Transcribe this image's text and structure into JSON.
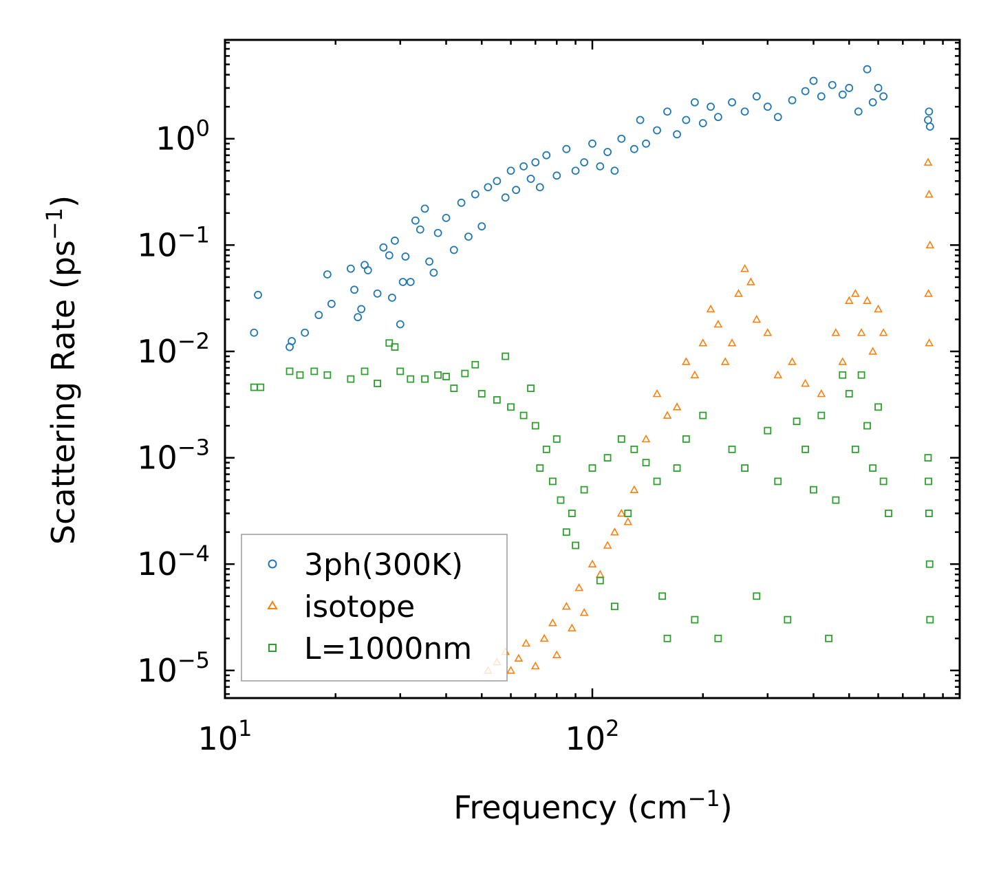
{
  "chart_data": {
    "type": "scatter",
    "xlabel": "Frequency (cm",
    "xlabel_exp": "−1",
    "xlabel_end": ")",
    "ylabel": "Scattering Rate (ps",
    "ylabel_exp": "−1",
    "ylabel_end": ")",
    "xscale": "log",
    "yscale": "log",
    "xlim": [
      10,
      1000
    ],
    "ylim": [
      5.5e-06,
      8.5
    ],
    "x_ticks": [
      {
        "base": "10",
        "exp": "1",
        "value": 10
      },
      {
        "base": "10",
        "exp": "2",
        "value": 100
      }
    ],
    "y_ticks": [
      {
        "base": "10",
        "exp": "0",
        "value": 1
      },
      {
        "base": "10",
        "exp": "−1",
        "value": 0.1
      },
      {
        "base": "10",
        "exp": "−2",
        "value": 0.01
      },
      {
        "base": "10",
        "exp": "−3",
        "value": 0.001
      },
      {
        "base": "10",
        "exp": "−4",
        "value": 0.0001
      },
      {
        "base": "10",
        "exp": "−5",
        "value": 1e-05
      }
    ],
    "legend_position": "lower-left",
    "series": [
      {
        "name": "3ph(300K)",
        "marker": "circle",
        "color": "#1f77b4",
        "points": [
          [
            12,
            0.015
          ],
          [
            12.3,
            0.034
          ],
          [
            15,
            0.011
          ],
          [
            15.2,
            0.0125
          ],
          [
            16.5,
            0.015
          ],
          [
            18,
            0.022
          ],
          [
            19,
            0.053
          ],
          [
            19.5,
            0.028
          ],
          [
            22,
            0.06
          ],
          [
            22.5,
            0.038
          ],
          [
            23,
            0.021
          ],
          [
            23.5,
            0.025
          ],
          [
            24,
            0.065
          ],
          [
            24.5,
            0.058
          ],
          [
            26,
            0.035
          ],
          [
            27,
            0.095
          ],
          [
            28,
            0.08
          ],
          [
            28.5,
            0.032
          ],
          [
            29,
            0.11
          ],
          [
            30,
            0.018
          ],
          [
            30.5,
            0.045
          ],
          [
            31,
            0.078
          ],
          [
            32,
            0.045
          ],
          [
            33,
            0.17
          ],
          [
            34,
            0.14
          ],
          [
            35,
            0.22
          ],
          [
            36,
            0.07
          ],
          [
            37,
            0.055
          ],
          [
            38,
            0.13
          ],
          [
            40,
            0.18
          ],
          [
            42,
            0.09
          ],
          [
            44,
            0.25
          ],
          [
            46,
            0.12
          ],
          [
            48,
            0.3
          ],
          [
            50,
            0.15
          ],
          [
            52,
            0.35
          ],
          [
            55,
            0.4
          ],
          [
            58,
            0.28
          ],
          [
            60,
            0.5
          ],
          [
            62,
            0.33
          ],
          [
            65,
            0.55
          ],
          [
            68,
            0.42
          ],
          [
            70,
            0.6
          ],
          [
            72,
            0.35
          ],
          [
            75,
            0.7
          ],
          [
            80,
            0.45
          ],
          [
            85,
            0.8
          ],
          [
            90,
            0.5
          ],
          [
            95,
            0.6
          ],
          [
            100,
            0.9
          ],
          [
            105,
            0.55
          ],
          [
            110,
            0.75
          ],
          [
            115,
            0.5
          ],
          [
            120,
            1.0
          ],
          [
            130,
            0.8
          ],
          [
            135,
            1.5
          ],
          [
            140,
            0.9
          ],
          [
            150,
            1.2
          ],
          [
            160,
            1.8
          ],
          [
            170,
            1.1
          ],
          [
            180,
            1.5
          ],
          [
            190,
            2.2
          ],
          [
            200,
            1.4
          ],
          [
            210,
            2.0
          ],
          [
            220,
            1.6
          ],
          [
            240,
            2.2
          ],
          [
            260,
            1.8
          ],
          [
            280,
            2.5
          ],
          [
            300,
            2.0
          ],
          [
            320,
            1.6
          ],
          [
            350,
            2.3
          ],
          [
            380,
            2.8
          ],
          [
            400,
            3.5
          ],
          [
            420,
            2.5
          ],
          [
            450,
            3.2
          ],
          [
            480,
            2.6
          ],
          [
            500,
            3.0
          ],
          [
            530,
            1.8
          ],
          [
            560,
            4.5
          ],
          [
            580,
            2.2
          ],
          [
            600,
            3.0
          ],
          [
            620,
            2.5
          ],
          [
            820,
            1.5
          ],
          [
            825,
            1.8
          ],
          [
            830,
            1.3
          ]
        ]
      },
      {
        "name": "isotope",
        "marker": "triangle",
        "color": "#ff7f0e",
        "points": [
          [
            52,
            1e-05
          ],
          [
            55,
            1.2e-05
          ],
          [
            58,
            1.5e-05
          ],
          [
            60,
            1e-05
          ],
          [
            63,
            1.3e-05
          ],
          [
            66,
            1.8e-05
          ],
          [
            70,
            1.1e-05
          ],
          [
            74,
            2e-05
          ],
          [
            78,
            2.8e-05
          ],
          [
            80,
            1.4e-05
          ],
          [
            85,
            4e-05
          ],
          [
            88,
            2.5e-05
          ],
          [
            92,
            6e-05
          ],
          [
            95,
            3.5e-05
          ],
          [
            100,
            0.0001
          ],
          [
            105,
            8e-05
          ],
          [
            110,
            0.00015
          ],
          [
            115,
            0.0002
          ],
          [
            120,
            0.0003
          ],
          [
            125,
            0.00025
          ],
          [
            130,
            0.0005
          ],
          [
            140,
            0.0015
          ],
          [
            150,
            0.004
          ],
          [
            160,
            0.0025
          ],
          [
            170,
            0.003
          ],
          [
            180,
            0.008
          ],
          [
            190,
            0.006
          ],
          [
            200,
            0.012
          ],
          [
            210,
            0.025
          ],
          [
            220,
            0.018
          ],
          [
            230,
            0.008
          ],
          [
            240,
            0.012
          ],
          [
            250,
            0.035
          ],
          [
            260,
            0.06
          ],
          [
            270,
            0.045
          ],
          [
            280,
            0.02
          ],
          [
            300,
            0.015
          ],
          [
            320,
            0.006
          ],
          [
            350,
            0.008
          ],
          [
            380,
            0.005
          ],
          [
            420,
            0.004
          ],
          [
            460,
            0.015
          ],
          [
            480,
            0.008
          ],
          [
            500,
            0.03
          ],
          [
            520,
            0.035
          ],
          [
            540,
            0.015
          ],
          [
            560,
            0.03
          ],
          [
            580,
            0.01
          ],
          [
            600,
            0.025
          ],
          [
            620,
            0.015
          ],
          [
            820,
            0.6
          ],
          [
            825,
            0.3
          ],
          [
            830,
            0.1
          ],
          [
            822,
            0.035
          ],
          [
            826,
            0.012
          ]
        ]
      },
      {
        "name": "L=1000nm",
        "marker": "square",
        "color": "#2ca02c",
        "points": [
          [
            12,
            0.0046
          ],
          [
            12.5,
            0.0046
          ],
          [
            15,
            0.0065
          ],
          [
            16,
            0.006
          ],
          [
            17.5,
            0.0065
          ],
          [
            19,
            0.006
          ],
          [
            22,
            0.0055
          ],
          [
            24,
            0.0065
          ],
          [
            26,
            0.005
          ],
          [
            28,
            0.012
          ],
          [
            29,
            0.011
          ],
          [
            30,
            0.0065
          ],
          [
            32,
            0.0055
          ],
          [
            35,
            0.0055
          ],
          [
            38,
            0.006
          ],
          [
            40,
            0.0058
          ],
          [
            42,
            0.0045
          ],
          [
            45,
            0.0062
          ],
          [
            48,
            0.0075
          ],
          [
            50,
            0.004
          ],
          [
            55,
            0.0035
          ],
          [
            58,
            0.009
          ],
          [
            60,
            0.003
          ],
          [
            65,
            0.0025
          ],
          [
            68,
            0.0045
          ],
          [
            70,
            0.002
          ],
          [
            72,
            0.0008
          ],
          [
            75,
            0.0012
          ],
          [
            78,
            0.0006
          ],
          [
            80,
            0.0015
          ],
          [
            82,
            0.0004
          ],
          [
            85,
            0.0002
          ],
          [
            88,
            0.0003
          ],
          [
            90,
            0.00015
          ],
          [
            95,
            0.0005
          ],
          [
            100,
            0.0008
          ],
          [
            105,
            7e-05
          ],
          [
            110,
            0.001
          ],
          [
            115,
            4e-05
          ],
          [
            120,
            0.0015
          ],
          [
            125,
            0.0003
          ],
          [
            130,
            0.0012
          ],
          [
            140,
            0.0009
          ],
          [
            150,
            0.0006
          ],
          [
            155,
            5e-05
          ],
          [
            160,
            2e-05
          ],
          [
            170,
            0.0008
          ],
          [
            180,
            0.0015
          ],
          [
            190,
            3e-05
          ],
          [
            200,
            0.0025
          ],
          [
            220,
            2e-05
          ],
          [
            240,
            0.0012
          ],
          [
            260,
            0.0008
          ],
          [
            280,
            5e-05
          ],
          [
            300,
            0.0018
          ],
          [
            320,
            0.0006
          ],
          [
            340,
            3e-05
          ],
          [
            360,
            0.0022
          ],
          [
            380,
            0.0012
          ],
          [
            400,
            0.0005
          ],
          [
            420,
            0.0025
          ],
          [
            440,
            2e-05
          ],
          [
            460,
            0.0004
          ],
          [
            480,
            0.006
          ],
          [
            500,
            0.004
          ],
          [
            520,
            0.0012
          ],
          [
            540,
            0.006
          ],
          [
            560,
            0.002
          ],
          [
            580,
            0.0008
          ],
          [
            600,
            0.003
          ],
          [
            620,
            0.0006
          ],
          [
            640,
            0.0003
          ],
          [
            820,
            0.001
          ],
          [
            822,
            0.0006
          ],
          [
            825,
            0.0003
          ],
          [
            828,
            0.0001
          ],
          [
            830,
            3e-05
          ]
        ]
      }
    ]
  }
}
